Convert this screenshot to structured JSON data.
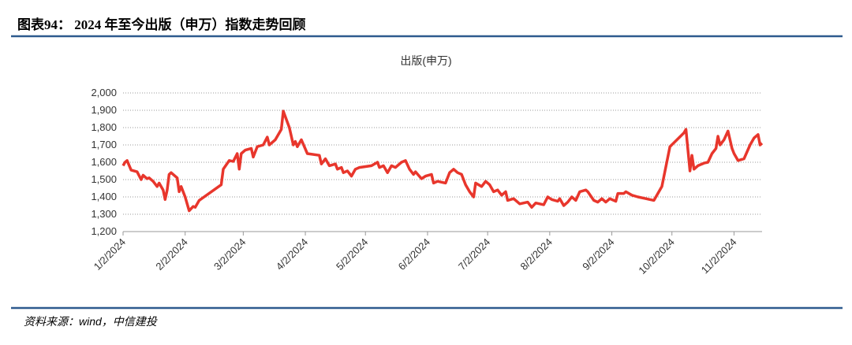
{
  "header": {
    "title": "图表94： 2024 年至今出版（申万）指数走势回顾"
  },
  "source": "资料来源：wind，中信建投",
  "chart_data": {
    "type": "line",
    "title": "出版(申万)",
    "x": [
      "1/2/2024",
      "1/3/2024",
      "1/4/2024",
      "1/6/2024",
      "1/9/2024",
      "1/11/2024",
      "1/12/2024",
      "1/14/2024",
      "1/15/2024",
      "1/17/2024",
      "1/19/2024",
      "1/20/2024",
      "1/22/2024",
      "1/23/2024",
      "1/24/2024",
      "1/25/2024",
      "1/26/2024",
      "1/29/2024",
      "1/30/2024",
      "1/31/2024",
      "2/2/2024",
      "2/4/2024",
      "2/6/2024",
      "2/7/2024",
      "2/9/2024",
      "2/20/2024",
      "2/21/2024",
      "2/24/2024",
      "2/26/2024",
      "2/28/2024",
      "2/29/2024",
      "3/1/2024",
      "3/3/2024",
      "3/6/2024",
      "3/7/2024",
      "3/9/2024",
      "3/12/2024",
      "3/14/2024",
      "3/15/2024",
      "3/18/2024",
      "3/21/2024",
      "3/22/2024",
      "3/25/2024",
      "3/27/2024",
      "3/28/2024",
      "3/29/2024",
      "3/31/2024",
      "4/3/2024",
      "4/9/2024",
      "4/10/2024",
      "4/12/2024",
      "4/14/2024",
      "4/17/2024",
      "4/18/2024",
      "4/20/2024",
      "4/21/2024",
      "4/23/2024",
      "4/25/2024",
      "4/27/2024",
      "4/29/2024",
      "5/5/2024",
      "5/8/2024",
      "5/9/2024",
      "5/11/2024",
      "5/13/2024",
      "5/15/2024",
      "5/17/2024",
      "5/20/2024",
      "5/22/2024",
      "5/24/2024",
      "5/26/2024",
      "5/27/2024",
      "5/30/2024",
      "6/1/2024",
      "6/4/2024",
      "6/5/2024",
      "6/7/2024",
      "6/11/2024",
      "6/13/2024",
      "6/15/2024",
      "6/17/2024",
      "6/19/2024",
      "6/21/2024",
      "6/23/2024",
      "6/25/2024",
      "6/26/2024",
      "6/29/2024",
      "7/1/2024",
      "7/3/2024",
      "7/5/2024",
      "7/7/2024",
      "7/9/2024",
      "7/11/2024",
      "7/12/2024",
      "7/15/2024",
      "7/18/2024",
      "7/22/2024",
      "7/24/2024",
      "7/26/2024",
      "7/30/2024",
      "8/1/2024",
      "8/3/2024",
      "8/6/2024",
      "8/7/2024",
      "8/9/2024",
      "8/11/2024",
      "8/13/2024",
      "8/15/2024",
      "8/17/2024",
      "8/20/2024",
      "8/21/2024",
      "8/24/2024",
      "8/26/2024",
      "8/28/2024",
      "8/30/2024",
      "9/1/2024",
      "9/4/2024",
      "9/5/2024",
      "9/8/2024",
      "9/9/2024",
      "9/12/2024",
      "9/15/2024",
      "9/19/2024",
      "9/23/2024",
      "9/27/2024",
      "10/1/2024",
      "10/8/2024",
      "10/9/2024",
      "10/11/2024",
      "10/12/2024",
      "10/13/2024",
      "10/15/2024",
      "10/18/2024",
      "10/20/2024",
      "10/22/2024",
      "10/24/2024",
      "10/25/2024",
      "10/26/2024",
      "10/28/2024",
      "10/30/2024",
      "11/1/2024",
      "11/2/2024",
      "11/4/2024",
      "11/7/2024",
      "11/10/2024",
      "11/12/2024",
      "11/14/2024",
      "11/15/2024",
      "11/16/2024"
    ],
    "series": [
      {
        "name": "出版(申万)",
        "color": "#e8362c",
        "values": [
          1580,
          1600,
          1610,
          1555,
          1545,
          1500,
          1525,
          1505,
          1510,
          1490,
          1460,
          1480,
          1440,
          1385,
          1440,
          1530,
          1540,
          1510,
          1430,
          1460,
          1400,
          1320,
          1345,
          1340,
          1380,
          1470,
          1560,
          1610,
          1605,
          1650,
          1560,
          1650,
          1670,
          1680,
          1630,
          1690,
          1700,
          1745,
          1700,
          1730,
          1790,
          1895,
          1800,
          1700,
          1720,
          1690,
          1730,
          1650,
          1640,
          1590,
          1620,
          1580,
          1590,
          1560,
          1570,
          1540,
          1550,
          1520,
          1560,
          1570,
          1580,
          1600,
          1570,
          1580,
          1540,
          1580,
          1570,
          1600,
          1610,
          1560,
          1530,
          1545,
          1505,
          1520,
          1530,
          1480,
          1490,
          1480,
          1540,
          1560,
          1540,
          1530,
          1470,
          1430,
          1400,
          1480,
          1460,
          1490,
          1470,
          1430,
          1440,
          1410,
          1430,
          1380,
          1390,
          1360,
          1370,
          1340,
          1365,
          1355,
          1400,
          1385,
          1375,
          1390,
          1350,
          1370,
          1400,
          1380,
          1430,
          1440,
          1430,
          1380,
          1370,
          1390,
          1370,
          1390,
          1375,
          1420,
          1420,
          1430,
          1410,
          1400,
          1390,
          1380,
          1460,
          1690,
          1770,
          1790,
          1550,
          1640,
          1560,
          1580,
          1595,
          1600,
          1650,
          1680,
          1750,
          1700,
          1730,
          1780,
          1680,
          1650,
          1610,
          1620,
          1700,
          1740,
          1760,
          1700,
          1710
        ]
      }
    ],
    "xlim": [
      "1/2/2024",
      "11/16/2024"
    ],
    "xticks": [
      "1/2/2024",
      "2/2/2024",
      "3/2/2024",
      "4/2/2024",
      "5/2/2024",
      "6/2/2024",
      "7/2/2024",
      "8/2/2024",
      "9/2/2024",
      "10/2/2024",
      "11/2/2024"
    ],
    "ylim": [
      1200,
      2000
    ],
    "yticks": [
      {
        "value": 1200,
        "label": "1,200"
      },
      {
        "value": 1300,
        "label": "1,300"
      },
      {
        "value": 1400,
        "label": "1,400"
      },
      {
        "value": 1500,
        "label": "1,500"
      },
      {
        "value": 1600,
        "label": "1,600"
      },
      {
        "value": 1700,
        "label": "1,700"
      },
      {
        "value": 1800,
        "label": "1,800"
      },
      {
        "value": 1900,
        "label": "1,900"
      },
      {
        "value": 2000,
        "label": "2,000"
      }
    ],
    "grid": true
  }
}
